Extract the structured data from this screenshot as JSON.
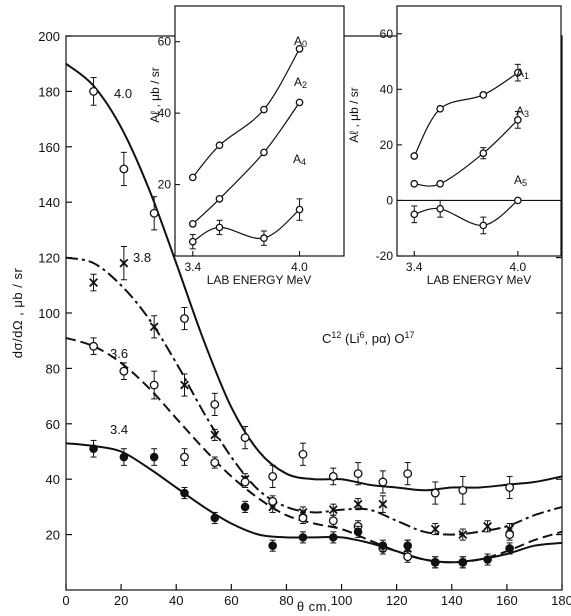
{
  "chart_data": [
    {
      "type": "scatter",
      "title": "",
      "xlabel": "θ cm.",
      "ylabel": "dσ/dΩ , μb / sr",
      "xlim": [
        0,
        180
      ],
      "ylim": [
        0,
        200
      ],
      "x_ticks": [
        "0",
        "20",
        "40",
        "60",
        "80",
        "100",
        "120",
        "140",
        "160",
        "180"
      ],
      "y_ticks": [
        "20",
        "40",
        "60",
        "80",
        "100",
        "120",
        "140",
        "160",
        "180",
        "200"
      ],
      "reaction_label": "C12 (Li6, pα) O17",
      "reaction_parts": {
        "a": "C",
        "b": "12",
        "c": " (Li",
        "d": "6",
        "e": ", pα) O",
        "f": "17"
      },
      "series": [
        {
          "name": "4.0",
          "marker": "open-circle",
          "dash": "solid",
          "x": [
            10,
            21,
            32,
            43,
            54,
            65,
            75,
            86,
            97,
            106,
            115,
            124,
            134,
            144,
            161
          ],
          "y": [
            180,
            152,
            136,
            98,
            67,
            55,
            41,
            49,
            41,
            42,
            39,
            42,
            35,
            36,
            37
          ],
          "err": [
            5,
            6,
            6,
            4,
            4,
            4,
            4,
            4,
            3,
            4,
            4,
            4,
            4,
            5,
            4
          ],
          "fit": [
            [
              0,
              190
            ],
            [
              10,
              182
            ],
            [
              20,
              167
            ],
            [
              30,
              145
            ],
            [
              40,
              118
            ],
            [
              50,
              90
            ],
            [
              60,
              66
            ],
            [
              70,
              50
            ],
            [
              80,
              42
            ],
            [
              90,
              40
            ],
            [
              100,
              40
            ],
            [
              110,
              38
            ],
            [
              120,
              37
            ],
            [
              130,
              36
            ],
            [
              140,
              37
            ],
            [
              150,
              37
            ],
            [
              160,
              38
            ],
            [
              170,
              39
            ],
            [
              180,
              41
            ]
          ]
        },
        {
          "name": "3.8",
          "marker": "cross",
          "dash": "dashdot",
          "x": [
            10,
            21,
            32,
            43,
            54,
            65,
            75,
            86,
            97,
            106,
            115,
            124,
            134,
            144,
            153,
            161
          ],
          "y": [
            111,
            118,
            95,
            74,
            56,
            40,
            30,
            28,
            29,
            31,
            31,
            15,
            22,
            20,
            23,
            22
          ],
          "err": [
            3,
            6,
            4,
            4,
            2,
            2,
            2,
            2,
            2,
            2,
            3,
            3,
            2,
            2,
            2,
            2
          ],
          "fit": [
            [
              0,
              120
            ],
            [
              10,
              118
            ],
            [
              20,
              110
            ],
            [
              30,
              98
            ],
            [
              40,
              82
            ],
            [
              50,
              64
            ],
            [
              60,
              48
            ],
            [
              70,
              36
            ],
            [
              80,
              30
            ],
            [
              90,
              28
            ],
            [
              100,
              29
            ],
            [
              110,
              29
            ],
            [
              120,
              25
            ],
            [
              130,
              21
            ],
            [
              140,
              20
            ],
            [
              150,
              21
            ],
            [
              160,
              23
            ],
            [
              170,
              27
            ],
            [
              180,
              30
            ]
          ]
        },
        {
          "name": "3.6",
          "marker": "open-circle",
          "dash": "dashed",
          "x": [
            10,
            21,
            32,
            43,
            54,
            65,
            75,
            86,
            97,
            106,
            115,
            124,
            134,
            144,
            161
          ],
          "y": [
            88,
            79,
            74,
            48,
            46,
            39,
            32,
            26,
            25,
            23,
            15,
            12,
            10,
            10,
            20
          ],
          "err": [
            3,
            3,
            5,
            3,
            2,
            2,
            2,
            2,
            2,
            2,
            2,
            2,
            2,
            2,
            2
          ],
          "fit": [
            [
              0,
              91
            ],
            [
              10,
              88
            ],
            [
              20,
              82
            ],
            [
              30,
              73
            ],
            [
              40,
              62
            ],
            [
              50,
              51
            ],
            [
              60,
              41
            ],
            [
              70,
              33
            ],
            [
              80,
              27
            ],
            [
              90,
              24
            ],
            [
              100,
              22
            ],
            [
              110,
              18
            ],
            [
              120,
              14
            ],
            [
              130,
              11
            ],
            [
              140,
              10
            ],
            [
              150,
              11
            ],
            [
              160,
              14
            ],
            [
              170,
              18
            ],
            [
              180,
              21
            ]
          ]
        },
        {
          "name": "3.4",
          "marker": "filled-circle",
          "dash": "solid",
          "x": [
            10,
            21,
            32,
            43,
            54,
            65,
            75,
            86,
            97,
            106,
            115,
            124,
            134,
            144,
            153,
            161
          ],
          "y": [
            51,
            48,
            48,
            35,
            26,
            30,
            16,
            19,
            19,
            21,
            16,
            16,
            10,
            10,
            11,
            15
          ],
          "err": [
            3,
            3,
            3,
            2,
            2,
            2,
            2,
            2,
            2,
            2,
            2,
            2,
            2,
            2,
            2,
            2
          ],
          "fit": [
            [
              0,
              53
            ],
            [
              10,
              52
            ],
            [
              20,
              50
            ],
            [
              30,
              44
            ],
            [
              40,
              37
            ],
            [
              50,
              30
            ],
            [
              60,
              24
            ],
            [
              70,
              20
            ],
            [
              80,
              19
            ],
            [
              90,
              19
            ],
            [
              100,
              19
            ],
            [
              110,
              17
            ],
            [
              120,
              14
            ],
            [
              130,
              11
            ],
            [
              140,
              10
            ],
            [
              150,
              11
            ],
            [
              160,
              13
            ],
            [
              170,
              16
            ],
            [
              180,
              17
            ]
          ]
        }
      ]
    },
    {
      "type": "line",
      "title": "",
      "xlabel": "LAB ENERGY MeV",
      "ylabel": "Aℓ , μb / sr",
      "xlim": [
        3.3,
        4.25
      ],
      "ylim": [
        0,
        70
      ],
      "x_ticks": [
        "3.4",
        "4.0"
      ],
      "y_ticks": [
        "20",
        "40",
        "60"
      ],
      "series": [
        {
          "name": "A0",
          "label_main": "A",
          "label_sub": "0",
          "marker": "open-circle",
          "x": [
            3.4,
            3.55,
            3.8,
            4.0
          ],
          "y": [
            22,
            31,
            41,
            58
          ],
          "err": [
            0,
            0,
            0,
            0
          ]
        },
        {
          "name": "A2",
          "label_main": "A",
          "label_sub": "2",
          "marker": "open-circle",
          "x": [
            3.4,
            3.55,
            3.8,
            4.0
          ],
          "y": [
            9,
            16,
            29,
            43
          ],
          "err": [
            0,
            0,
            0,
            0
          ]
        },
        {
          "name": "A4",
          "label_main": "A",
          "label_sub": "4",
          "marker": "open-circle",
          "x": [
            3.4,
            3.55,
            3.8,
            4.0
          ],
          "y": [
            4,
            8,
            5,
            13
          ],
          "err": [
            2,
            2,
            2,
            3
          ]
        }
      ]
    },
    {
      "type": "line",
      "title": "",
      "xlabel": "LAB ENERGY MeV",
      "ylabel": "Aℓ , μb / sr",
      "xlim": [
        3.3,
        4.25
      ],
      "ylim": [
        -20,
        70
      ],
      "x_ticks": [
        "3.4",
        "4.0"
      ],
      "y_ticks": [
        "-20",
        "0",
        "20",
        "40",
        "60"
      ],
      "series": [
        {
          "name": "A1",
          "label_main": "A",
          "label_sub": "1",
          "marker": "open-circle",
          "x": [
            3.4,
            3.55,
            3.8,
            4.0
          ],
          "y": [
            16,
            33,
            38,
            46
          ],
          "err": [
            0,
            0,
            0,
            3
          ]
        },
        {
          "name": "A3",
          "label_main": "A",
          "label_sub": "3",
          "marker": "open-circle",
          "x": [
            3.4,
            3.55,
            3.8,
            4.0
          ],
          "y": [
            6,
            6,
            17,
            29
          ],
          "err": [
            0,
            0,
            2,
            3
          ]
        },
        {
          "name": "A5",
          "label_main": "A",
          "label_sub": "5",
          "marker": "open-circle",
          "x": [
            3.4,
            3.55,
            3.8,
            4.0
          ],
          "y": [
            -5,
            -3,
            -9,
            0
          ],
          "err": [
            3,
            3,
            3,
            0
          ]
        }
      ]
    }
  ]
}
